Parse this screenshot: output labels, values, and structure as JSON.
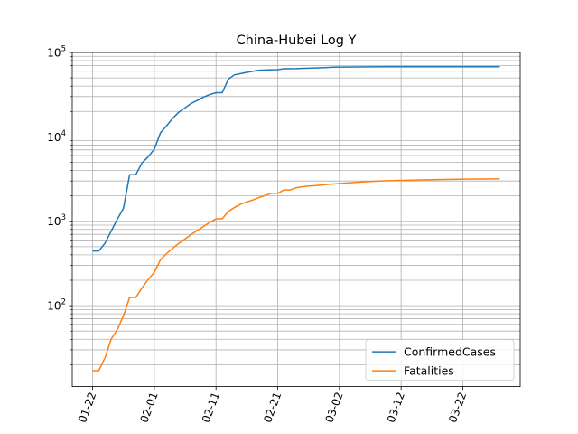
{
  "chart_data": {
    "type": "line",
    "title": "China-Hubei Log Y",
    "xlabel": "",
    "ylabel": "",
    "yscale": "log",
    "grid": {
      "major": true,
      "minor": true
    },
    "legend_position": "lower-right",
    "xlim": [
      "2020-01-22",
      "2020-03-28"
    ],
    "ylim": [
      11,
      100000
    ],
    "x_ticks": [
      "01-22",
      "02-01",
      "02-11",
      "02-21",
      "03-02",
      "03-12",
      "03-22"
    ],
    "x_tick_dates": [
      "2020-01-22",
      "2020-02-01",
      "2020-02-11",
      "2020-02-21",
      "2020-03-02",
      "2020-03-12",
      "2020-03-22"
    ],
    "y_ticks": [
      {
        "value": 100,
        "base": "10",
        "exp": "2"
      },
      {
        "value": 1000,
        "base": "10",
        "exp": "3"
      },
      {
        "value": 10000,
        "base": "10",
        "exp": "4"
      },
      {
        "value": 100000,
        "base": "10",
        "exp": "5"
      }
    ],
    "series": [
      {
        "name": "ConfirmedCases",
        "color": "#1f77b4",
        "points": [
          [
            "2020-01-22",
            444
          ],
          [
            "2020-01-23",
            444
          ],
          [
            "2020-01-24",
            549
          ],
          [
            "2020-01-25",
            761
          ],
          [
            "2020-01-26",
            1058
          ],
          [
            "2020-01-27",
            1423
          ],
          [
            "2020-01-28",
            3554
          ],
          [
            "2020-01-29",
            3554
          ],
          [
            "2020-01-30",
            4903
          ],
          [
            "2020-01-31",
            5806
          ],
          [
            "2020-02-01",
            7153
          ],
          [
            "2020-02-02",
            11177
          ],
          [
            "2020-02-03",
            13522
          ],
          [
            "2020-02-04",
            16678
          ],
          [
            "2020-02-05",
            19665
          ],
          [
            "2020-02-06",
            22112
          ],
          [
            "2020-02-07",
            24953
          ],
          [
            "2020-02-08",
            27100
          ],
          [
            "2020-02-09",
            29631
          ],
          [
            "2020-02-10",
            31728
          ],
          [
            "2020-02-11",
            33366
          ],
          [
            "2020-02-12",
            33366
          ],
          [
            "2020-02-13",
            48206
          ],
          [
            "2020-02-14",
            54406
          ],
          [
            "2020-02-15",
            56249
          ],
          [
            "2020-02-16",
            58182
          ],
          [
            "2020-02-17",
            59989
          ],
          [
            "2020-02-18",
            61682
          ],
          [
            "2020-02-19",
            62031
          ],
          [
            "2020-02-20",
            62442
          ],
          [
            "2020-02-21",
            62662
          ],
          [
            "2020-02-22",
            64084
          ],
          [
            "2020-02-23",
            64084
          ],
          [
            "2020-02-24",
            64287
          ],
          [
            "2020-02-25",
            64786
          ],
          [
            "2020-02-26",
            65187
          ],
          [
            "2020-02-27",
            65596
          ],
          [
            "2020-02-28",
            65914
          ],
          [
            "2020-02-29",
            66337
          ],
          [
            "2020-03-01",
            66907
          ],
          [
            "2020-03-02",
            67103
          ],
          [
            "2020-03-05",
            67466
          ],
          [
            "2020-03-10",
            67760
          ],
          [
            "2020-03-15",
            67794
          ],
          [
            "2020-03-20",
            67800
          ],
          [
            "2020-03-25",
            67801
          ],
          [
            "2020-03-28",
            67801
          ]
        ]
      },
      {
        "name": "Fatalities",
        "color": "#ff7f0e",
        "points": [
          [
            "2020-01-22",
            17
          ],
          [
            "2020-01-23",
            17
          ],
          [
            "2020-01-24",
            24
          ],
          [
            "2020-01-25",
            40
          ],
          [
            "2020-01-26",
            52
          ],
          [
            "2020-01-27",
            76
          ],
          [
            "2020-01-28",
            125
          ],
          [
            "2020-01-29",
            125
          ],
          [
            "2020-01-30",
            162
          ],
          [
            "2020-01-31",
            204
          ],
          [
            "2020-02-01",
            249
          ],
          [
            "2020-02-02",
            350
          ],
          [
            "2020-02-03",
            414
          ],
          [
            "2020-02-04",
            479
          ],
          [
            "2020-02-05",
            549
          ],
          [
            "2020-02-06",
            618
          ],
          [
            "2020-02-07",
            699
          ],
          [
            "2020-02-08",
            780
          ],
          [
            "2020-02-09",
            871
          ],
          [
            "2020-02-10",
            974
          ],
          [
            "2020-02-11",
            1068
          ],
          [
            "2020-02-12",
            1068
          ],
          [
            "2020-02-13",
            1310
          ],
          [
            "2020-02-14",
            1457
          ],
          [
            "2020-02-15",
            1596
          ],
          [
            "2020-02-16",
            1696
          ],
          [
            "2020-02-17",
            1789
          ],
          [
            "2020-02-18",
            1921
          ],
          [
            "2020-02-19",
            2029
          ],
          [
            "2020-02-20",
            2144
          ],
          [
            "2020-02-21",
            2144
          ],
          [
            "2020-02-22",
            2346
          ],
          [
            "2020-02-23",
            2346
          ],
          [
            "2020-02-24",
            2495
          ],
          [
            "2020-02-25",
            2563
          ],
          [
            "2020-02-26",
            2615
          ],
          [
            "2020-02-27",
            2641
          ],
          [
            "2020-02-28",
            2682
          ],
          [
            "2020-02-29",
            2727
          ],
          [
            "2020-03-01",
            2761
          ],
          [
            "2020-03-02",
            2803
          ],
          [
            "2020-03-04",
            2871
          ],
          [
            "2020-03-06",
            2931
          ],
          [
            "2020-03-08",
            2986
          ],
          [
            "2020-03-10",
            3024
          ],
          [
            "2020-03-13",
            3062
          ],
          [
            "2020-03-16",
            3099
          ],
          [
            "2020-03-19",
            3130
          ],
          [
            "2020-03-22",
            3153
          ],
          [
            "2020-03-25",
            3163
          ],
          [
            "2020-03-28",
            3174
          ]
        ]
      }
    ]
  }
}
